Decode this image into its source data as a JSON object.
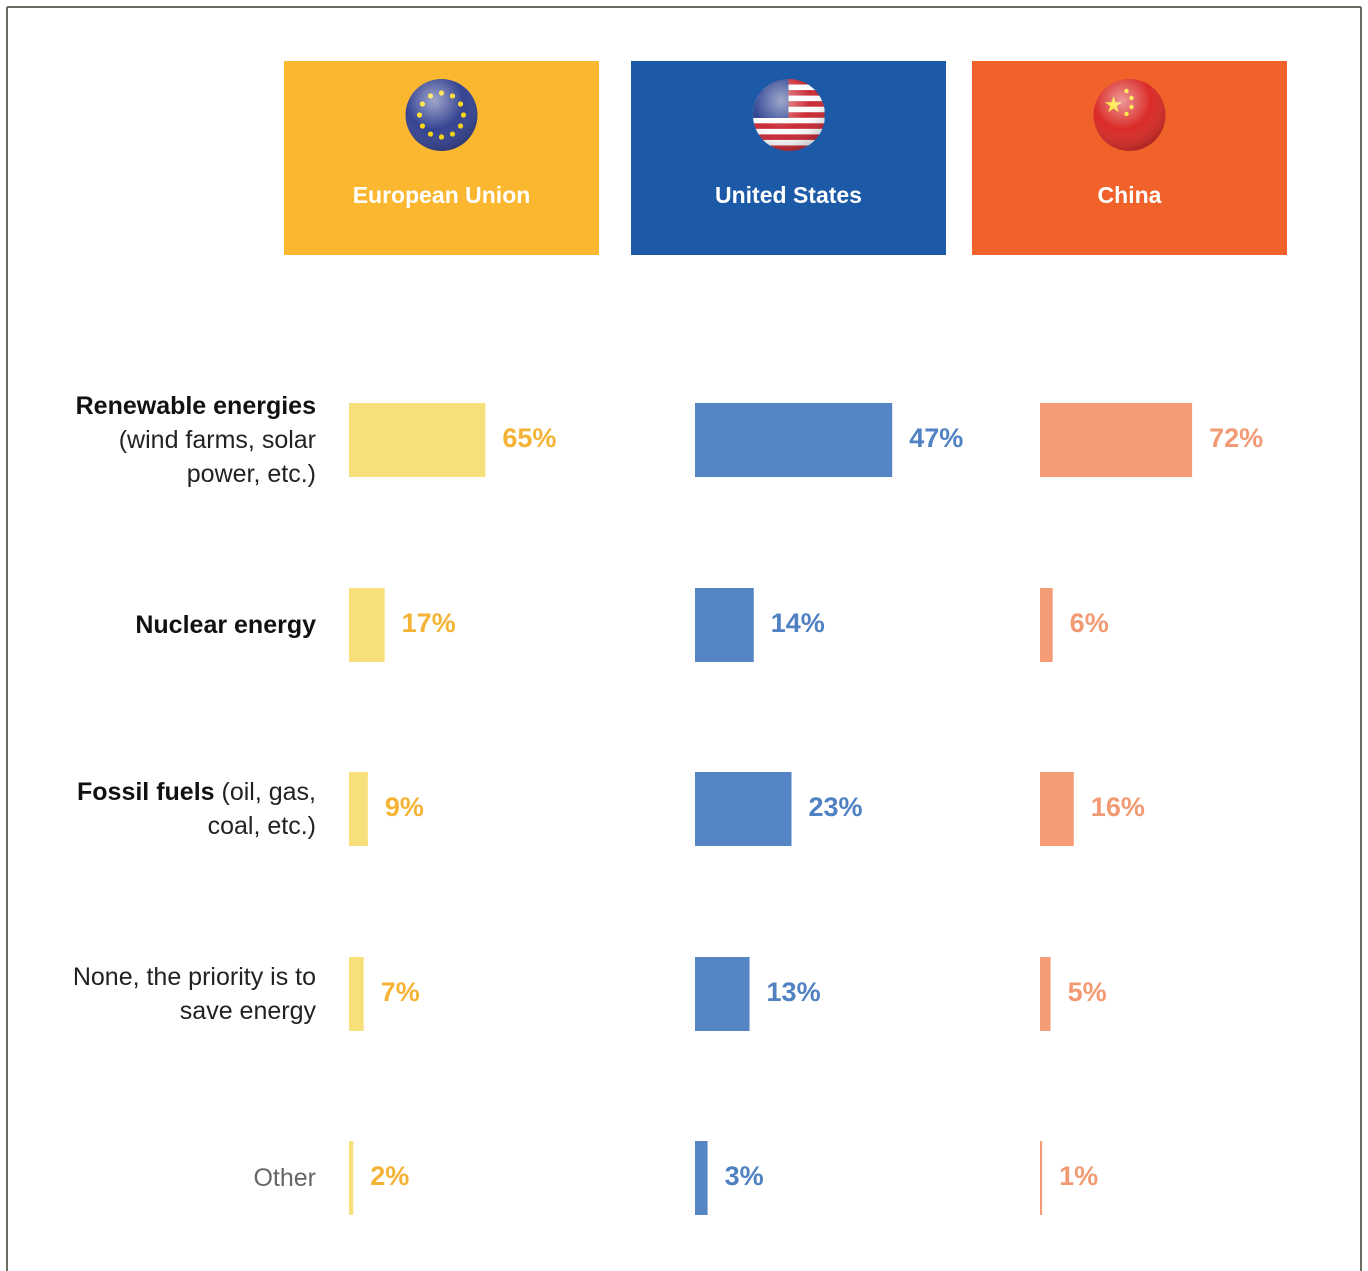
{
  "chart_data": {
    "type": "bar",
    "orientation": "horizontal",
    "categories": [
      {
        "name": "Renewable energies",
        "detail": "(wind farms, solar power, etc.)"
      },
      {
        "name": "Nuclear energy"
      },
      {
        "name": "Fossil fuels",
        "detail": "(oil, gas, coal, etc.)"
      },
      {
        "detail": "None, the priority is to save energy"
      },
      {
        "detail": "Other"
      }
    ],
    "series": [
      {
        "name": "European Union",
        "color": "#f7e07a",
        "label_color": "#f5b335",
        "header_color": "#fbb72f",
        "xlim": [
          0,
          143
        ],
        "values": [
          65,
          17,
          9,
          7,
          2
        ],
        "value_labels": [
          "65%",
          "17%",
          "9%",
          "7%",
          "2%"
        ]
      },
      {
        "name": "United States",
        "color": "#5585c5",
        "label_color": "#4f81c3",
        "header_color": "#1c5aa8",
        "xlim": [
          0,
          71.5
        ],
        "values": [
          47,
          14,
          23,
          13,
          3
        ],
        "value_labels": [
          "47%",
          "14%",
          "23%",
          "13%",
          "3%"
        ]
      },
      {
        "name": "China",
        "color": "#f49c78",
        "label_color": "#f29a73",
        "header_color": "#f0622a",
        "xlim": [
          0,
          142
        ],
        "values": [
          72,
          6,
          16,
          5,
          1
        ],
        "value_labels": [
          "72%",
          "6%",
          "16%",
          "5%",
          "1%"
        ]
      }
    ]
  }
}
